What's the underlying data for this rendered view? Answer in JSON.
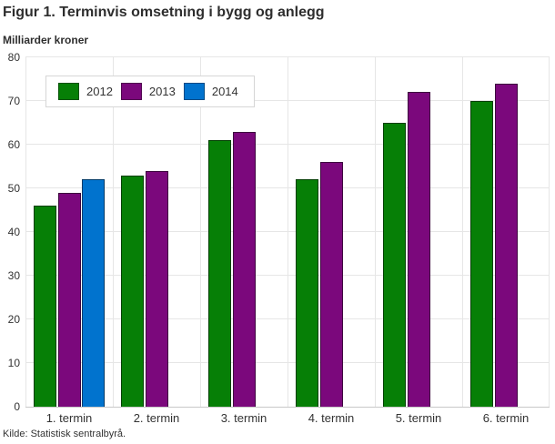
{
  "header": {
    "title": "Figur 1. Terminvis omsetning i bygg og anlegg",
    "subtitle": "Milliarder kroner"
  },
  "footer": {
    "source": "Kilde: Statistisk sentralbyrå."
  },
  "colors": {
    "series_2012": "#067f06",
    "series_2013": "#7b087c",
    "series_2014": "#0173ce",
    "grid": "#e6e6e6",
    "axis_line": "#c9c9c9",
    "text": "#333333",
    "title_text": "#2e2e2e",
    "legend_border": "#d6d6d6"
  },
  "chart_data": {
    "type": "bar",
    "title": "Figur 1. Terminvis omsetning i bygg og anlegg",
    "xlabel": "",
    "ylabel": "Milliarder kroner",
    "categories": [
      "1. termin",
      "2. termin",
      "3. termin",
      "4. termin",
      "5. termin",
      "6. termin"
    ],
    "series": [
      {
        "name": "2012",
        "color": "#067f06",
        "values": [
          46,
          53,
          61,
          52,
          65,
          70
        ]
      },
      {
        "name": "2013",
        "color": "#7b087c",
        "values": [
          49,
          54,
          63,
          56,
          72,
          74
        ]
      },
      {
        "name": "2014",
        "color": "#0173ce",
        "values": [
          52,
          null,
          null,
          null,
          null,
          null
        ]
      }
    ],
    "ylim": [
      0,
      80
    ],
    "yticks": [
      0,
      10,
      20,
      30,
      40,
      50,
      60,
      70,
      80
    ],
    "grid": true,
    "legend_position": "top-left",
    "source": "Kilde: Statistisk sentralbyrå."
  }
}
